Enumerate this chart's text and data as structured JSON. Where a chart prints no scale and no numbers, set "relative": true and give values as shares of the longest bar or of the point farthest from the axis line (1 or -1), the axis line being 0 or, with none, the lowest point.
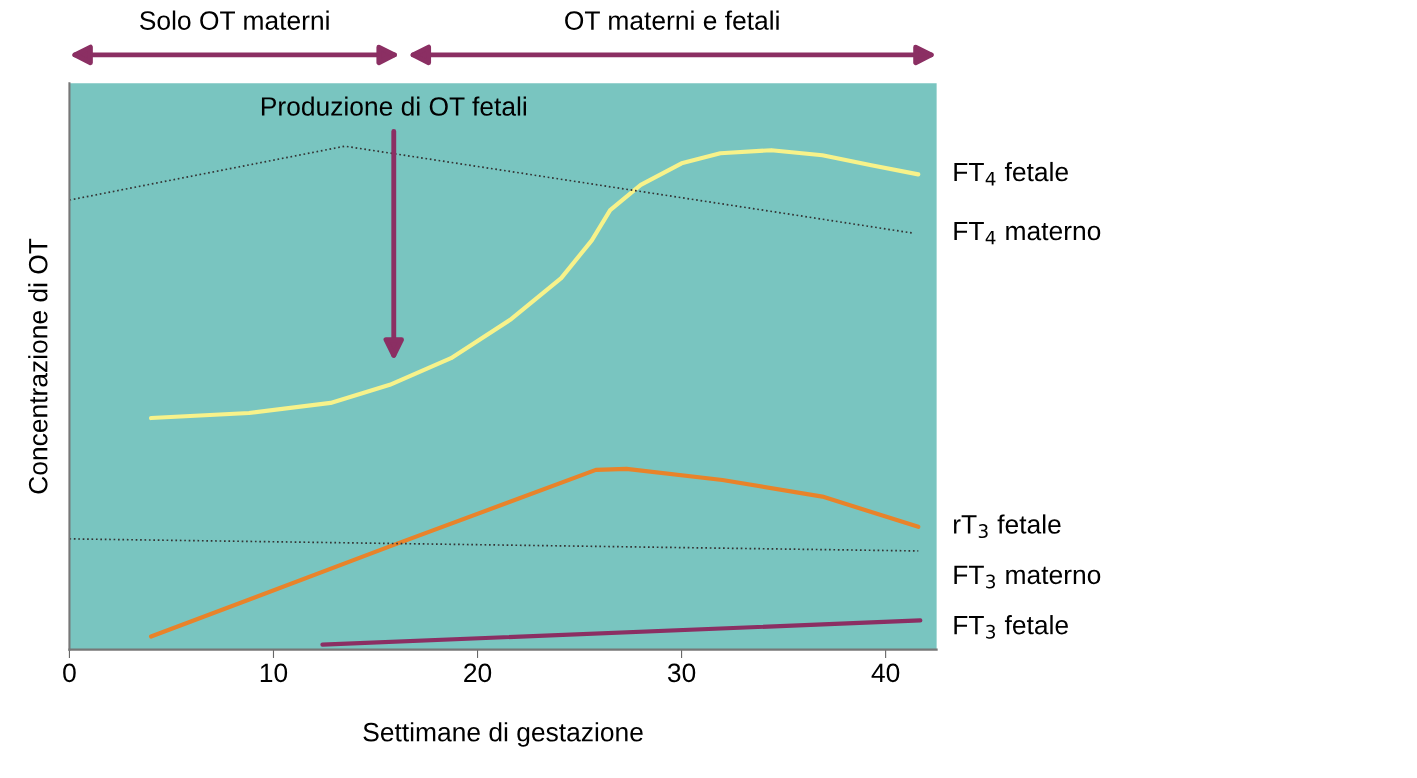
{
  "chart_data": {
    "type": "line",
    "relative": true,
    "xlabel": "Settimane di gestazione",
    "ylabel": "Concentrazione di OT",
    "xlim": [
      0,
      42.5
    ],
    "xticks": [
      0,
      10,
      20,
      30,
      40
    ],
    "tick_labels": "x",
    "grid": false,
    "series": [
      {
        "name": "FT$_{4}$ fetale",
        "color": "#f7f28a",
        "line_style": "solid",
        "x": [
          4.0,
          8.8,
          12.8,
          15.7,
          18.7,
          21.6,
          24.1,
          25.6,
          26.5,
          28.0,
          30.0,
          31.9,
          34.4,
          36.9,
          39.3,
          41.6
        ],
        "values": [
          0.46,
          0.47,
          0.49,
          0.526,
          0.579,
          0.655,
          0.738,
          0.813,
          0.873,
          0.923,
          0.966,
          0.986,
          0.992,
          0.982,
          0.962,
          0.944
        ]
      },
      {
        "name": "FT$_{4}$ materno",
        "color": "#333333",
        "line_style": "dotted",
        "x": [
          0,
          13.5,
          41.4
        ],
        "values": [
          0.893,
          1.0,
          0.827
        ]
      },
      {
        "name": "rT$_{3}$ fetale",
        "color": "#e8832a",
        "line_style": "solid",
        "x": [
          4.0,
          15.7,
          25.8,
          27.3,
          32.0,
          36.9,
          41.6
        ],
        "values": [
          0.026,
          0.205,
          0.357,
          0.359,
          0.337,
          0.304,
          0.244
        ]
      },
      {
        "name": "FT$_{3}$ materno",
        "color": "#333333",
        "line_style": "dotted",
        "x": [
          0,
          41.6
        ],
        "values": [
          0.22,
          0.196
        ]
      },
      {
        "name": "FT$_{3}$ fetale",
        "color": "#8b2f63",
        "line_style": "solid",
        "x": [
          12.4,
          41.7
        ],
        "values": [
          0.01,
          0.058
        ]
      }
    ],
    "annotations": [
      "Solo OT materni",
      "OT materni e fetali",
      "Produzione di OT fetali"
    ]
  }
}
